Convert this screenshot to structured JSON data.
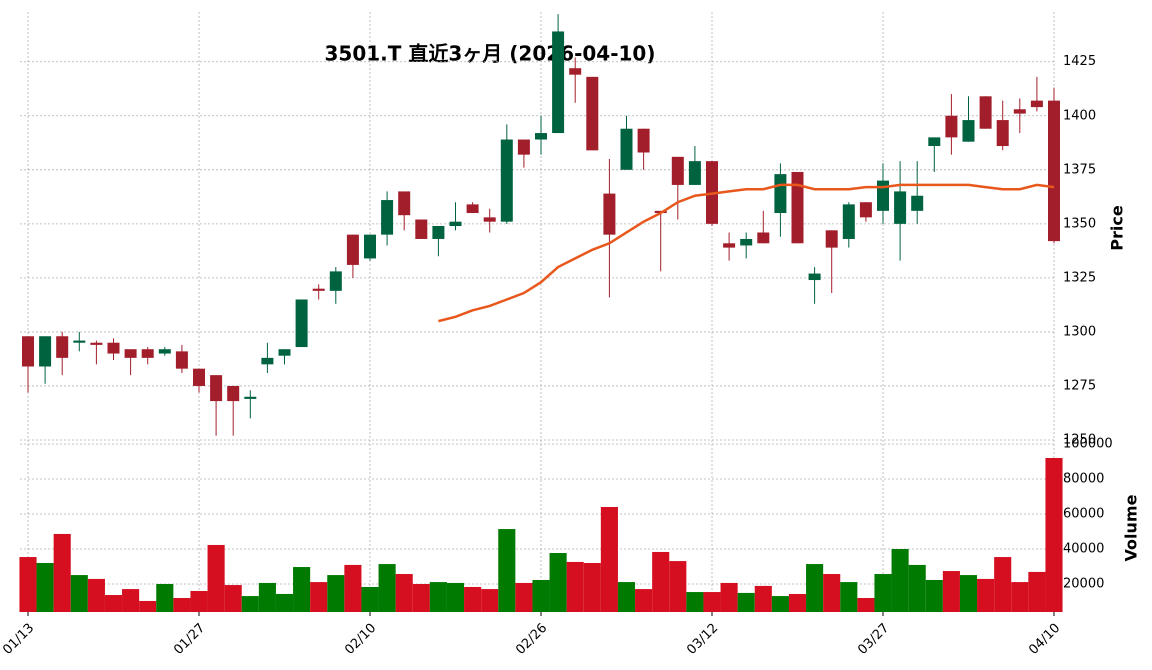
{
  "chart_data": {
    "type": "candlestick",
    "title": "3501.T 直近3ヶ月 (2026-04-10)",
    "ylabel": "Price",
    "grid": true,
    "categories": [
      "01/13",
      null,
      null,
      null,
      null,
      null,
      null,
      null,
      null,
      null,
      "01/27",
      null,
      null,
      null,
      null,
      null,
      null,
      null,
      null,
      null,
      "02/10",
      null,
      null,
      null,
      null,
      null,
      null,
      null,
      null,
      null,
      "02/26",
      null,
      null,
      null,
      null,
      null,
      null,
      null,
      null,
      null,
      "03/12",
      null,
      null,
      null,
      null,
      null,
      null,
      null,
      null,
      null,
      "03/27",
      null,
      null,
      null,
      null,
      null,
      null,
      null,
      null,
      null,
      "04/10"
    ],
    "open": [
      1298,
      1284,
      1298,
      1295,
      1295,
      1295,
      1292,
      1292,
      1290,
      1291,
      1283,
      1280,
      1275,
      1269,
      1285,
      1289,
      1293,
      1320,
      1319,
      1345,
      1334,
      1345,
      1365,
      1352,
      1343,
      1349,
      1359,
      1353,
      1351,
      1389,
      1389,
      1392,
      1422,
      1418,
      1364,
      1375,
      1394,
      1356,
      1381,
      1368,
      1379,
      1341,
      1340,
      1346,
      1355,
      1374,
      1324,
      1347,
      1343,
      1360,
      1356,
      1350,
      1356,
      1386,
      1400,
      1388,
      1409,
      1398,
      1403,
      1407,
      1407
    ],
    "high": [
      1298,
      1298,
      1300,
      1300,
      1296,
      1297,
      1292,
      1293,
      1293,
      1294,
      1283,
      1280,
      1275,
      1273,
      1295,
      1292,
      1315,
      1322,
      1330,
      1345,
      1345,
      1365,
      1365,
      1352,
      1349,
      1360,
      1360,
      1357,
      1396,
      1389,
      1400,
      1447,
      1427,
      1418,
      1380,
      1400,
      1394,
      1356,
      1381,
      1386,
      1379,
      1346,
      1346,
      1356,
      1378,
      1374,
      1330,
      1347,
      1360,
      1360,
      1378,
      1379,
      1379,
      1390,
      1410,
      1409,
      1409,
      1407,
      1408,
      1418,
      1413
    ],
    "low": [
      1272,
      1276,
      1280,
      1291,
      1285,
      1287,
      1280,
      1285,
      1289,
      1281,
      1272,
      1252,
      1252,
      1260,
      1281,
      1285,
      1293,
      1315,
      1313,
      1325,
      1333,
      1340,
      1347,
      1343,
      1335,
      1347,
      1355,
      1346,
      1350,
      1376,
      1382,
      1392,
      1406,
      1384,
      1316,
      1375,
      1375,
      1328,
      1352,
      1368,
      1349,
      1333,
      1334,
      1341,
      1344,
      1341,
      1313,
      1318,
      1339,
      1351,
      1350,
      1333,
      1350,
      1374,
      1382,
      1388,
      1394,
      1384,
      1392,
      1402,
      1341
    ],
    "close": [
      1284,
      1298,
      1288,
      1296,
      1294,
      1290,
      1288,
      1288,
      1292,
      1283,
      1275,
      1268,
      1268,
      1270,
      1288,
      1292,
      1315,
      1319,
      1328,
      1331,
      1345,
      1361,
      1354,
      1343,
      1349,
      1351,
      1355,
      1351,
      1389,
      1382,
      1392,
      1439,
      1419,
      1384,
      1345,
      1394,
      1383,
      1355,
      1368,
      1379,
      1350,
      1339,
      1343,
      1341,
      1373,
      1341,
      1327,
      1339,
      1359,
      1353,
      1370,
      1365,
      1363,
      1390,
      1390,
      1398,
      1394,
      1386,
      1401,
      1404,
      1342
    ],
    "up_color": "#006340",
    "down_color": "#a31e2b",
    "ma": {
      "color": "#e8571b",
      "values": [
        null,
        null,
        null,
        null,
        null,
        null,
        null,
        null,
        null,
        null,
        null,
        null,
        null,
        null,
        null,
        null,
        null,
        null,
        null,
        null,
        null,
        null,
        null,
        null,
        1305,
        1307,
        1310,
        1312,
        1315,
        1318,
        1323,
        1330,
        1334,
        1338,
        1341,
        1346,
        1351,
        1355,
        1360,
        1363,
        1364,
        1365,
        1366,
        1366,
        1368,
        1368,
        1366,
        1366,
        1366,
        1367,
        1367,
        1368,
        1368,
        1368,
        1368,
        1368,
        1367,
        1366,
        1366,
        1368,
        1367
      ]
    },
    "ylim": [
      1250,
      1448
    ],
    "yticks": [
      1250,
      1275,
      1300,
      1325,
      1350,
      1375,
      1400,
      1425
    ],
    "volume": {
      "type": "bar",
      "ylabel": "Volume",
      "values": [
        35400,
        32000,
        48600,
        25100,
        22900,
        13700,
        17100,
        10300,
        20000,
        12000,
        16000,
        42300,
        19400,
        13100,
        20600,
        14300,
        29700,
        21100,
        25100,
        30900,
        18300,
        31400,
        25700,
        20000,
        21100,
        20600,
        18300,
        17100,
        51400,
        20600,
        22300,
        37700,
        32600,
        32000,
        64000,
        21100,
        17100,
        38300,
        33100,
        15400,
        15400,
        20600,
        14900,
        18900,
        13100,
        14300,
        31400,
        25700,
        21100,
        12000,
        25700,
        40000,
        30900,
        22300,
        27400,
        25100,
        22900,
        35400,
        21100,
        26900,
        92000
      ],
      "up_color": "#007a00",
      "down_color": "#d50f1f",
      "ylim": [
        4000,
        100000
      ],
      "yticks": [
        20000,
        40000,
        60000,
        80000,
        100000
      ]
    }
  }
}
